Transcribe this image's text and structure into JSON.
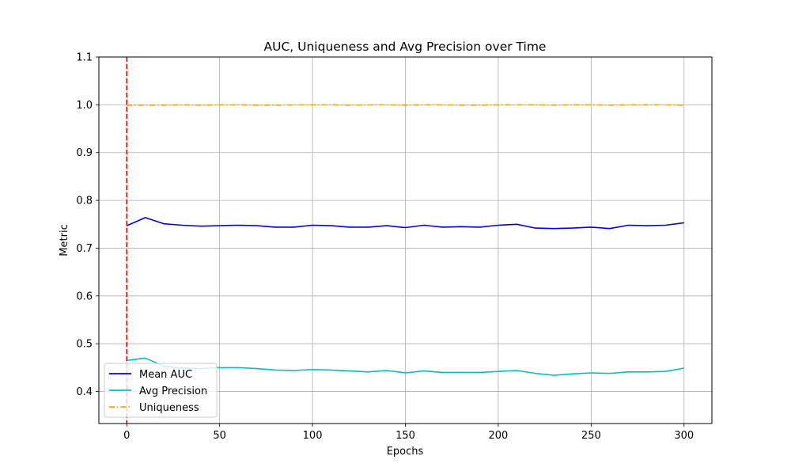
{
  "chart_data": {
    "type": "line",
    "title": "AUC, Uniqueness and Avg Precision over Time",
    "xlabel": "Epochs",
    "ylabel": "Metric",
    "xlim": [
      -15,
      315
    ],
    "ylim": [
      0.333,
      1.1
    ],
    "x_ticks": [
      0,
      50,
      100,
      150,
      200,
      250,
      300
    ],
    "y_ticks": [
      0.4,
      0.5,
      0.6,
      0.7,
      0.8,
      0.9,
      1.0,
      1.1
    ],
    "x_tick_labels": [
      "0",
      "50",
      "100",
      "150",
      "200",
      "250",
      "300"
    ],
    "y_tick_labels": [
      "0.4",
      "0.5",
      "0.6",
      "0.7",
      "0.8",
      "0.9",
      "1.0",
      "1.1"
    ],
    "highlight_x_tick_color": "#ff0000",
    "grid": true,
    "legend_position": "lower-left",
    "x": [
      0,
      10,
      20,
      30,
      40,
      50,
      60,
      70,
      80,
      90,
      100,
      110,
      120,
      130,
      140,
      150,
      160,
      170,
      180,
      190,
      200,
      210,
      220,
      230,
      240,
      250,
      260,
      270,
      280,
      290,
      300
    ],
    "series": [
      {
        "name": "Mean AUC",
        "color": "#0000ee",
        "style": "solid",
        "values": [
          0.747,
          0.764,
          0.751,
          0.748,
          0.746,
          0.747,
          0.748,
          0.747,
          0.744,
          0.744,
          0.748,
          0.747,
          0.744,
          0.744,
          0.747,
          0.743,
          0.748,
          0.744,
          0.745,
          0.744,
          0.748,
          0.75,
          0.742,
          0.741,
          0.742,
          0.744,
          0.741,
          0.748,
          0.747,
          0.748,
          0.753
        ]
      },
      {
        "name": "Avg Precision",
        "color": "#00bfbf",
        "style": "solid",
        "values": [
          0.465,
          0.47,
          0.453,
          0.449,
          0.448,
          0.45,
          0.45,
          0.448,
          0.445,
          0.444,
          0.446,
          0.445,
          0.443,
          0.441,
          0.444,
          0.439,
          0.443,
          0.44,
          0.44,
          0.44,
          0.442,
          0.444,
          0.438,
          0.434,
          0.437,
          0.439,
          0.438,
          0.441,
          0.441,
          0.442,
          0.449
        ]
      },
      {
        "name": "Uniqueness",
        "color": "#ffa500",
        "style": "dashdot",
        "values": [
          0.999,
          0.999,
          0.999,
          1.0,
          0.999,
          1.0,
          1.0,
          0.999,
          0.999,
          1.0,
          1.0,
          1.0,
          0.999,
          1.0,
          1.0,
          0.999,
          1.0,
          1.0,
          0.999,
          0.999,
          1.0,
          1.0,
          1.0,
          0.999,
          1.0,
          1.0,
          0.999,
          1.0,
          1.0,
          1.0,
          0.999
        ]
      }
    ],
    "vline": {
      "x": 0,
      "color": "#ff0000",
      "style": "dashed"
    }
  }
}
